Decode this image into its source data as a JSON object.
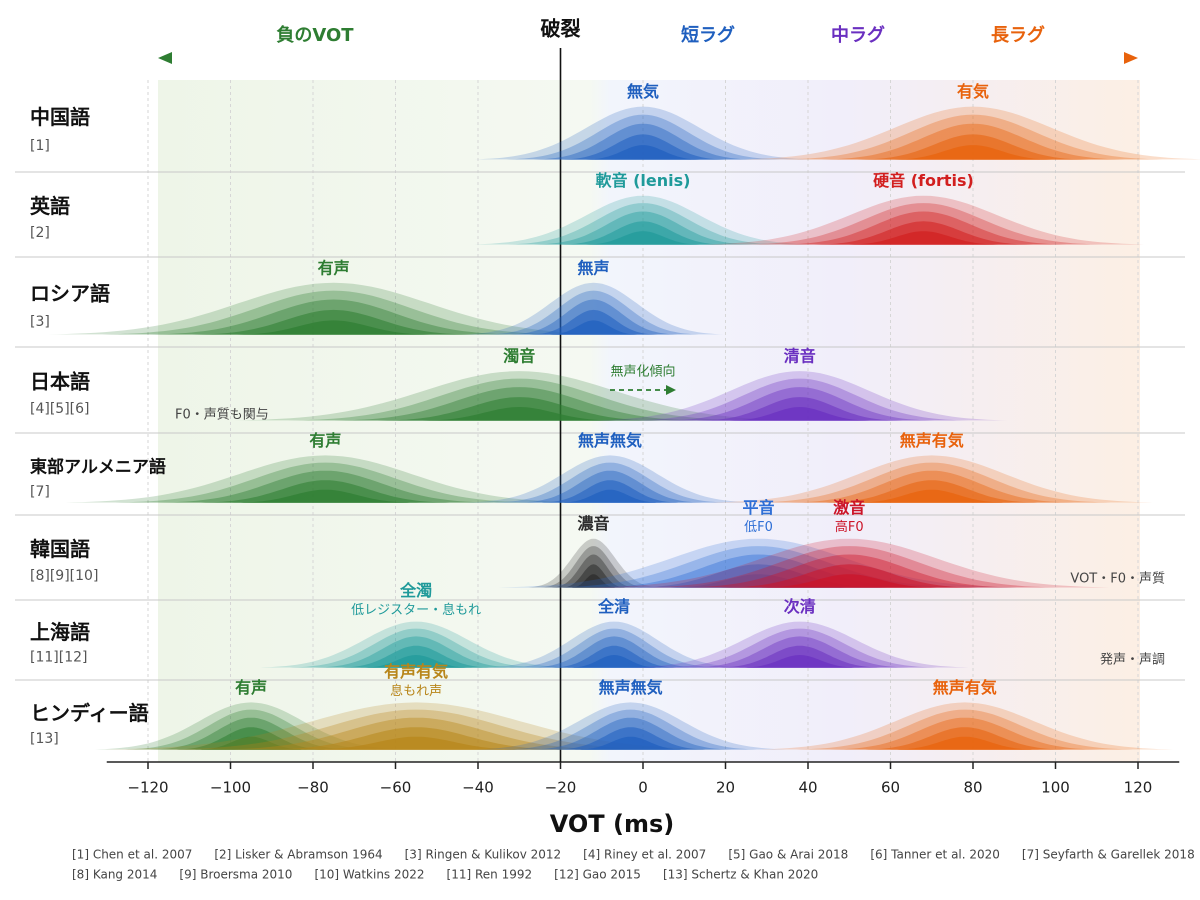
{
  "chart_data": {
    "type": "ridgeline",
    "xlabel": "VOT (ms)",
    "xlim": [
      -130,
      130
    ],
    "xticks": [
      {
        "value": -120,
        "label": "−120"
      },
      {
        "value": -100,
        "label": "−100"
      },
      {
        "value": -80,
        "label": "−80"
      },
      {
        "value": -60,
        "label": "−60"
      },
      {
        "value": -40,
        "label": "−40"
      },
      {
        "value": -20,
        "label": "−20"
      },
      0,
      20,
      40,
      60,
      80,
      100,
      120
    ],
    "grid": true,
    "burst": {
      "label": "破裂",
      "value": -20
    },
    "regions": [
      {
        "name": "負のVOT",
        "color": "#2e7d32"
      },
      {
        "name": "短ラグ",
        "color": "#1f5fbf"
      },
      {
        "name": "中ラグ",
        "color": "#6a2fc0"
      },
      {
        "name": "長ラグ",
        "color": "#e8620c"
      }
    ],
    "rows": [
      {
        "language": "中国語",
        "refs": "[1]",
        "distributions": [
          {
            "name": "無気",
            "color": "#1f5fbf",
            "mean": 0,
            "sd": 13
          },
          {
            "name": "有気",
            "color": "#e8620c",
            "mean": 80,
            "sd": 18
          }
        ]
      },
      {
        "language": "英語",
        "refs": "[2]",
        "distributions": [
          {
            "name": "軟音 (lenis)",
            "color": "#1f9a9a",
            "mean": 0,
            "sd": 13
          },
          {
            "name": "硬音 (fortis)",
            "color": "#d21f1f",
            "mean": 68,
            "sd": 17
          }
        ]
      },
      {
        "language": "ロシア語",
        "refs": "[3]",
        "distributions": [
          {
            "name": "有声",
            "color": "#2e7d32",
            "mean": -75,
            "sd": 22
          },
          {
            "name": "無声",
            "color": "#1f5fbf",
            "mean": -12,
            "sd": 10
          }
        ]
      },
      {
        "language": "日本語",
        "refs": "[4][5][6]",
        "note": "F0・声質も関与",
        "note_position": "left",
        "arrow_note": "無声化傾向",
        "distributions": [
          {
            "name": "濁音",
            "color": "#2e7d32",
            "mean": -30,
            "sd": 22
          },
          {
            "name": "清音",
            "color": "#6a2fc0",
            "mean": 38,
            "sd": 16
          }
        ]
      },
      {
        "language": "東部アルメニア語",
        "refs": "[7]",
        "distributions": [
          {
            "name": "有声",
            "color": "#2e7d32",
            "mean": -77,
            "sd": 20
          },
          {
            "name": "無声無気",
            "color": "#1f5fbf",
            "mean": -8,
            "sd": 11
          },
          {
            "name": "無声有気",
            "color": "#e8620c",
            "mean": 70,
            "sd": 17
          }
        ]
      },
      {
        "language": "韓国語",
        "refs": "[8][9][10]",
        "note": "VOT・F0・声質",
        "note_position": "right",
        "distributions": [
          {
            "name": "濃音",
            "color": "#2b2b2b",
            "mean": -12,
            "sd": 5
          },
          {
            "name": "平音",
            "sublabel": "低F0",
            "color": "#2f6fd6",
            "mean": 28,
            "sd": 20
          },
          {
            "name": "激音",
            "sublabel": "高F0",
            "color": "#cc1428",
            "mean": 50,
            "sd": 20
          }
        ]
      },
      {
        "language": "上海語",
        "refs": "[11][12]",
        "note": "発声・声調",
        "note_position": "right",
        "distributions": [
          {
            "name": "全濁",
            "sublabel": "低レジスター・息もれ",
            "color": "#1f9a9a",
            "mean": -55,
            "sd": 12
          },
          {
            "name": "全清",
            "color": "#1f5fbf",
            "mean": -7,
            "sd": 10
          },
          {
            "name": "次清",
            "color": "#6a2fc0",
            "mean": 38,
            "sd": 13
          }
        ]
      },
      {
        "language": "ヒンディー語",
        "refs": "[13]",
        "distributions": [
          {
            "name": "有声",
            "color": "#2e7d32",
            "mean": -95,
            "sd": 12
          },
          {
            "name": "有声有気",
            "sublabel": "息もれ声",
            "color": "#b8861a",
            "mean": -55,
            "sd": 24
          },
          {
            "name": "無声無気",
            "color": "#1f5fbf",
            "mean": -3,
            "sd": 12
          },
          {
            "name": "無声有気",
            "color": "#e8620c",
            "mean": 78,
            "sd": 16
          }
        ]
      }
    ],
    "references": [
      "[1] Chen et al. 2007",
      "[2] Lisker & Abramson 1964",
      "[3] Ringen & Kulikov 2012",
      "[4] Riney et al. 2007",
      "[5] Gao & Arai 2018",
      "[6] Tanner et al. 2020",
      "[7] Seyfarth & Garellek 2018",
      "[8] Kang 2014",
      "[9] Broersma 2010",
      "[10] Watkins 2022",
      "[11] Ren 1992",
      "[12] Gao 2015",
      "[13] Schertz & Khan 2020"
    ]
  }
}
